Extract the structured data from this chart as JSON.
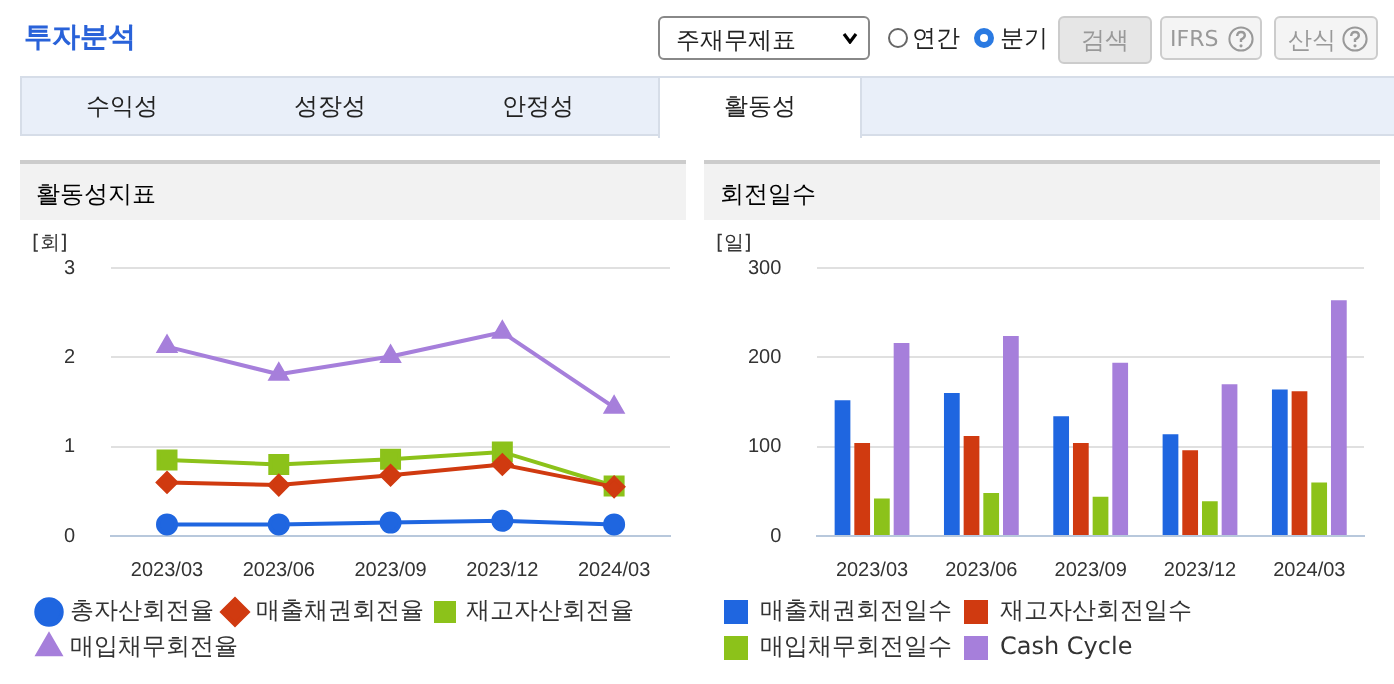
{
  "chart_data": [
    {
      "type": "other",
      "title": "투자분석",
      "annotations": [
        "주재무제표",
        "연간",
        "분기",
        "검색",
        "IFRS",
        "산식",
        "수익성",
        "성장성",
        "안정성",
        "활동성"
      ]
    },
    {
      "type": "line",
      "title": "활동성지표",
      "ylabel": "[회]",
      "categories": [
        "2023/03",
        "2023/06",
        "2023/09",
        "2023/12",
        "2024/03"
      ],
      "ylim": [
        0,
        3
      ],
      "yticks": [
        0,
        1,
        2,
        3
      ],
      "grid": "y",
      "legend": "bottom",
      "series": [
        {
          "name": "총자산회전율",
          "color": "#1f66e0",
          "marker": "circle",
          "values": [
            0.13,
            0.13,
            0.15,
            0.17,
            0.13
          ]
        },
        {
          "name": "매출채권회전율",
          "color": "#d03a10",
          "marker": "diamond",
          "values": [
            0.6,
            0.57,
            0.68,
            0.8,
            0.55
          ]
        },
        {
          "name": "재고자산회전율",
          "color": "#8cc21a",
          "marker": "square",
          "values": [
            0.85,
            0.8,
            0.86,
            0.94,
            0.56
          ]
        },
        {
          "name": "매입채무회전율",
          "color": "#a67fdb",
          "marker": "triangle",
          "values": [
            2.12,
            1.81,
            2.01,
            2.28,
            1.44
          ]
        }
      ]
    },
    {
      "type": "bar",
      "title": "회전일수",
      "ylabel": "[일]",
      "categories": [
        "2023/03",
        "2023/06",
        "2023/09",
        "2023/12",
        "2024/03"
      ],
      "ylim": [
        0,
        300
      ],
      "yticks": [
        0,
        100,
        200,
        300
      ],
      "grid": "y",
      "legend": "bottom",
      "series": [
        {
          "name": "매출채권회전일수",
          "color": "#1f66e0",
          "values": [
            152,
            160,
            134,
            114,
            164
          ]
        },
        {
          "name": "재고자산회전일수",
          "color": "#d03a10",
          "values": [
            104,
            112,
            104,
            96,
            162
          ]
        },
        {
          "name": "매입채무회전일수",
          "color": "#8cc21a",
          "values": [
            42,
            48,
            44,
            39,
            60
          ]
        },
        {
          "name": "Cash Cycle",
          "color": "#a67fdb",
          "values": [
            216,
            224,
            194,
            170,
            264
          ]
        }
      ]
    }
  ]
}
